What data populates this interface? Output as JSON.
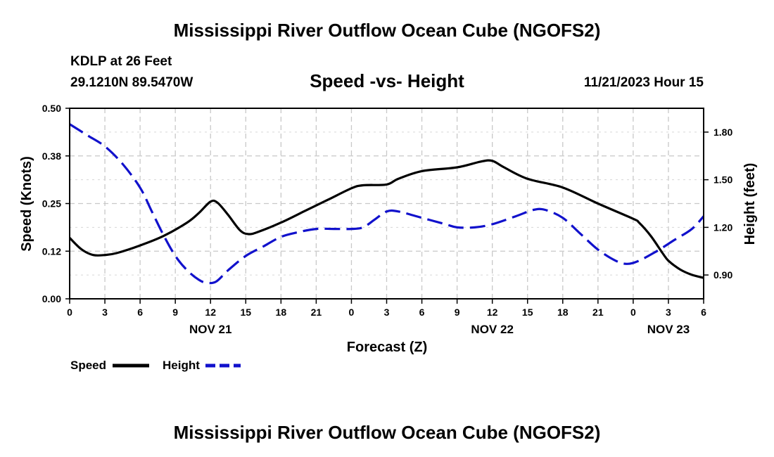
{
  "page_title": "Mississippi River Outflow Ocean Cube (NGOFS2)",
  "footer_title": "Mississippi River Outflow Ocean Cube (NGOFS2)",
  "station": {
    "name": "KDLP at 26 Feet",
    "coords": "29.1210N  89.5470W",
    "datetime": "11/21/2023 Hour 15"
  },
  "chart_data": {
    "type": "line",
    "title": "Speed -vs- Height",
    "xlabel": "Forecast (Z)",
    "ylabel_left": "Speed (Knots)",
    "ylabel_right": "Height (feet)",
    "x_hours_range": [
      0,
      54
    ],
    "x_ticks": [
      {
        "h": 0,
        "label": "0"
      },
      {
        "h": 3,
        "label": "3"
      },
      {
        "h": 6,
        "label": "6"
      },
      {
        "h": 9,
        "label": "9"
      },
      {
        "h": 12,
        "label": "12"
      },
      {
        "h": 15,
        "label": "15"
      },
      {
        "h": 18,
        "label": "18"
      },
      {
        "h": 21,
        "label": "21"
      },
      {
        "h": 24,
        "label": "0"
      },
      {
        "h": 27,
        "label": "3"
      },
      {
        "h": 30,
        "label": "6"
      },
      {
        "h": 33,
        "label": "9"
      },
      {
        "h": 36,
        "label": "12"
      },
      {
        "h": 39,
        "label": "15"
      },
      {
        "h": 42,
        "label": "18"
      },
      {
        "h": 45,
        "label": "21"
      },
      {
        "h": 48,
        "label": "0"
      },
      {
        "h": 51,
        "label": "3"
      },
      {
        "h": 54,
        "label": "6"
      }
    ],
    "day_labels": [
      {
        "h": 12,
        "label": "NOV 21"
      },
      {
        "h": 36,
        "label": "NOV 22"
      },
      {
        "h": 51,
        "label": "NOV 23"
      }
    ],
    "y_left": {
      "range": [
        0,
        0.5
      ],
      "ticks": [
        0,
        0.125,
        0.25,
        0.375,
        0.5
      ],
      "tick_labels": [
        "0.00",
        "0.12",
        "0.25",
        "0.38",
        "0.50"
      ]
    },
    "y_right": {
      "range": [
        0.75,
        1.95
      ],
      "ticks": [
        0.9,
        1.2,
        1.5,
        1.8
      ],
      "tick_labels": [
        "0.90",
        "1.20",
        "1.50",
        "1.80"
      ]
    },
    "grid": true,
    "series": [
      {
        "name": "Speed",
        "axis": "left",
        "color": "#000000",
        "dash": false,
        "points": [
          [
            0,
            0.16
          ],
          [
            1,
            0.13
          ],
          [
            2,
            0.115
          ],
          [
            3,
            0.115
          ],
          [
            4,
            0.12
          ],
          [
            6,
            0.14
          ],
          [
            8,
            0.165
          ],
          [
            10,
            0.2
          ],
          [
            11,
            0.225
          ],
          [
            12,
            0.255
          ],
          [
            12.6,
            0.252
          ],
          [
            13.5,
            0.22
          ],
          [
            14.5,
            0.18
          ],
          [
            15.2,
            0.17
          ],
          [
            16,
            0.175
          ],
          [
            18,
            0.2
          ],
          [
            20,
            0.23
          ],
          [
            22,
            0.26
          ],
          [
            24,
            0.29
          ],
          [
            25,
            0.298
          ],
          [
            27,
            0.3
          ],
          [
            28,
            0.315
          ],
          [
            30,
            0.335
          ],
          [
            33,
            0.345
          ],
          [
            35,
            0.36
          ],
          [
            36,
            0.362
          ],
          [
            37,
            0.345
          ],
          [
            39,
            0.315
          ],
          [
            42,
            0.292
          ],
          [
            45,
            0.25
          ],
          [
            48,
            0.21
          ],
          [
            48.5,
            0.2
          ],
          [
            49.5,
            0.165
          ],
          [
            50.5,
            0.12
          ],
          [
            51,
            0.1
          ],
          [
            52,
            0.077
          ],
          [
            53,
            0.063
          ],
          [
            54,
            0.055
          ]
        ]
      },
      {
        "name": "Height",
        "axis": "right",
        "color": "#1111cc",
        "dash": true,
        "points": [
          [
            0,
            1.85
          ],
          [
            1.5,
            1.78
          ],
          [
            3,
            1.71
          ],
          [
            4.5,
            1.6
          ],
          [
            6,
            1.45
          ],
          [
            7,
            1.3
          ],
          [
            8,
            1.15
          ],
          [
            9,
            1.02
          ],
          [
            10,
            0.93
          ],
          [
            11,
            0.87
          ],
          [
            11.7,
            0.85
          ],
          [
            12.5,
            0.86
          ],
          [
            13.5,
            0.93
          ],
          [
            15,
            1.02
          ],
          [
            16.5,
            1.08
          ],
          [
            18,
            1.14
          ],
          [
            19.5,
            1.17
          ],
          [
            21,
            1.19
          ],
          [
            22.5,
            1.19
          ],
          [
            24,
            1.19
          ],
          [
            25,
            1.2
          ],
          [
            26,
            1.25
          ],
          [
            27,
            1.3
          ],
          [
            28,
            1.3
          ],
          [
            30,
            1.26
          ],
          [
            32,
            1.22
          ],
          [
            33,
            1.2
          ],
          [
            34.5,
            1.2
          ],
          [
            36,
            1.22
          ],
          [
            38,
            1.27
          ],
          [
            39.5,
            1.31
          ],
          [
            40.5,
            1.31
          ],
          [
            42,
            1.26
          ],
          [
            43.5,
            1.16
          ],
          [
            45,
            1.06
          ],
          [
            46.5,
            0.99
          ],
          [
            47.5,
            0.97
          ],
          [
            48.5,
            0.99
          ],
          [
            50,
            1.05
          ],
          [
            51.5,
            1.12
          ],
          [
            53,
            1.19
          ],
          [
            54,
            1.27
          ]
        ]
      }
    ]
  },
  "legend": {
    "speed_label": "Speed",
    "height_label": "Height",
    "speed_color": "#000000",
    "height_color": "#1111cc"
  }
}
